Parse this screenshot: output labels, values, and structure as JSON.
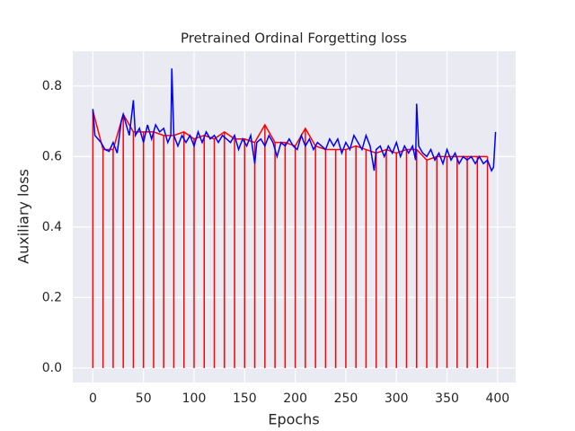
{
  "chart_data": {
    "type": "line",
    "title": "Pretrained Ordinal Forgetting loss",
    "xlabel": "Epochs",
    "ylabel": "Auxiliary loss",
    "xlim": [
      -19.9,
      417.9
    ],
    "ylim": [
      -0.041,
      0.899
    ],
    "xticks": [
      0,
      50,
      100,
      150,
      200,
      250,
      300,
      350,
      400
    ],
    "yticks": [
      {
        "value": 0,
        "label": "0.0"
      },
      0.2,
      0.4,
      0.6,
      0.8
    ],
    "grid": true,
    "series": [
      {
        "kind": "stem",
        "color": "#ff0000",
        "x": [
          0,
          10,
          20,
          30,
          40,
          50,
          60,
          70,
          80,
          90,
          100,
          110,
          120,
          130,
          140,
          150,
          160,
          170,
          180,
          190,
          200,
          210,
          220,
          230,
          240,
          250,
          260,
          270,
          280,
          290,
          300,
          310,
          320,
          330,
          340,
          350,
          360,
          370,
          380,
          390
        ],
        "values": [
          0.73,
          0.62,
          0.62,
          0.72,
          0.67,
          0.67,
          0.67,
          0.66,
          0.66,
          0.67,
          0.65,
          0.66,
          0.65,
          0.67,
          0.65,
          0.65,
          0.64,
          0.69,
          0.64,
          0.64,
          0.63,
          0.68,
          0.63,
          0.62,
          0.62,
          0.62,
          0.63,
          0.62,
          0.61,
          0.62,
          0.61,
          0.62,
          0.62,
          0.59,
          0.6,
          0.6,
          0.6,
          0.6,
          0.6,
          0.6
        ]
      },
      {
        "kind": "line",
        "color": "#0000ff",
        "x": [
          0,
          2,
          5,
          8,
          12,
          16,
          20,
          24,
          28,
          30,
          32,
          36,
          40,
          42,
          46,
          50,
          54,
          58,
          62,
          66,
          70,
          74,
          77,
          78,
          80,
          84,
          88,
          92,
          96,
          100,
          104,
          108,
          112,
          116,
          120,
          124,
          128,
          132,
          136,
          140,
          144,
          148,
          152,
          156,
          160,
          162,
          166,
          170,
          174,
          178,
          182,
          186,
          190,
          194,
          198,
          202,
          206,
          210,
          214,
          218,
          222,
          226,
          230,
          234,
          238,
          242,
          246,
          250,
          254,
          258,
          262,
          266,
          270,
          274,
          278,
          280,
          284,
          288,
          292,
          296,
          300,
          304,
          308,
          312,
          316,
          319,
          320,
          322,
          326,
          330,
          334,
          338,
          342,
          346,
          350,
          354,
          358,
          362,
          366,
          370,
          374,
          378,
          382,
          386,
          390,
          394,
          396,
          398
        ],
        "values": [
          0.735,
          0.66,
          0.65,
          0.64,
          0.62,
          0.615,
          0.64,
          0.61,
          0.7,
          0.72,
          0.7,
          0.66,
          0.76,
          0.66,
          0.68,
          0.64,
          0.69,
          0.65,
          0.69,
          0.67,
          0.68,
          0.64,
          0.66,
          0.85,
          0.66,
          0.63,
          0.66,
          0.64,
          0.66,
          0.63,
          0.67,
          0.64,
          0.67,
          0.65,
          0.66,
          0.64,
          0.66,
          0.65,
          0.64,
          0.66,
          0.62,
          0.65,
          0.63,
          0.66,
          0.58,
          0.64,
          0.65,
          0.63,
          0.66,
          0.64,
          0.6,
          0.64,
          0.63,
          0.65,
          0.63,
          0.62,
          0.66,
          0.63,
          0.65,
          0.62,
          0.64,
          0.63,
          0.62,
          0.65,
          0.63,
          0.65,
          0.61,
          0.64,
          0.62,
          0.66,
          0.64,
          0.62,
          0.66,
          0.63,
          0.56,
          0.62,
          0.63,
          0.6,
          0.63,
          0.61,
          0.64,
          0.6,
          0.63,
          0.61,
          0.63,
          0.59,
          0.75,
          0.63,
          0.61,
          0.6,
          0.62,
          0.59,
          0.61,
          0.58,
          0.62,
          0.59,
          0.61,
          0.58,
          0.6,
          0.59,
          0.6,
          0.58,
          0.6,
          0.58,
          0.59,
          0.56,
          0.57,
          0.67
        ]
      }
    ]
  }
}
